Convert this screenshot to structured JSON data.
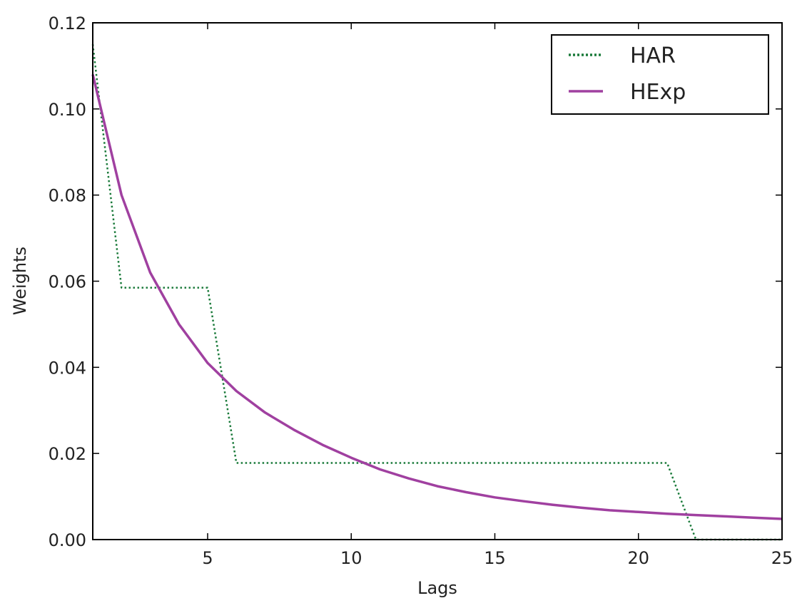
{
  "chart_data": {
    "type": "line",
    "xlabel": "Lags",
    "ylabel": "Weights",
    "xlim": [
      1,
      25
    ],
    "ylim": [
      0,
      0.12
    ],
    "x_ticks": [
      5,
      10,
      15,
      20,
      25
    ],
    "x_tick_labels": [
      "5",
      "10",
      "15",
      "20",
      "25"
    ],
    "y_ticks": [
      0.0,
      0.02,
      0.04,
      0.06,
      0.08,
      0.1,
      0.12
    ],
    "y_tick_labels": [
      "0.00",
      "0.02",
      "0.04",
      "0.06",
      "0.08",
      "0.10",
      "0.12"
    ],
    "grid": false,
    "legend_position": "top-right",
    "series": [
      {
        "name": "HAR",
        "style": "dotted",
        "color": "#1a7a3a",
        "x": [
          1,
          2,
          3,
          4,
          5,
          6,
          7,
          8,
          9,
          10,
          11,
          12,
          13,
          14,
          15,
          16,
          17,
          18,
          19,
          20,
          21,
          22,
          23,
          24,
          25
        ],
        "y": [
          0.115,
          0.0585,
          0.0585,
          0.0585,
          0.0585,
          0.0178,
          0.0178,
          0.0178,
          0.0178,
          0.0178,
          0.0178,
          0.0178,
          0.0178,
          0.0178,
          0.0178,
          0.0178,
          0.0178,
          0.0178,
          0.0178,
          0.0178,
          0.0178,
          0.0,
          0.0,
          0.0,
          0.0
        ]
      },
      {
        "name": "HExp",
        "style": "solid",
        "color": "#a040a0",
        "x": [
          1,
          2,
          3,
          4,
          5,
          6,
          7,
          8,
          9,
          10,
          11,
          12,
          13,
          14,
          15,
          16,
          17,
          18,
          19,
          20,
          21,
          22,
          23,
          24,
          25
        ],
        "y": [
          0.108,
          0.08,
          0.062,
          0.05,
          0.041,
          0.0345,
          0.0295,
          0.0255,
          0.022,
          0.019,
          0.0163,
          0.0142,
          0.0124,
          0.011,
          0.0098,
          0.0089,
          0.0081,
          0.0074,
          0.0068,
          0.0064,
          0.006,
          0.0057,
          0.0054,
          0.0051,
          0.0048
        ]
      }
    ]
  }
}
